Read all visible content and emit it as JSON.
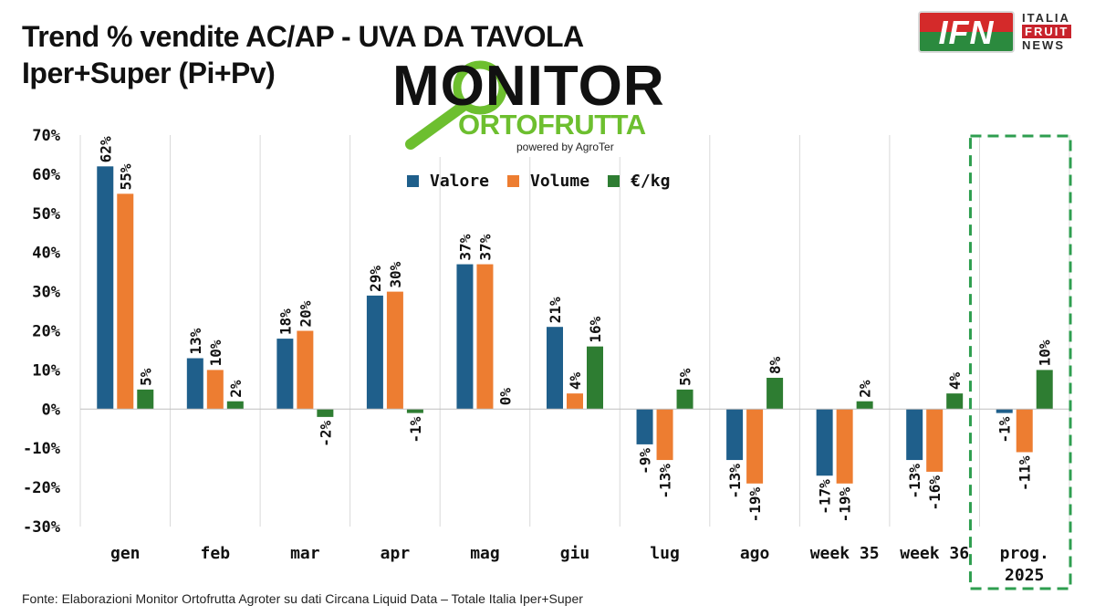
{
  "title": {
    "line1": "Trend % vendite AC/AP - UVA DA TAVOLA",
    "line2": "Iper+Super (Pi+Pv)"
  },
  "logos": {
    "ifn": {
      "mark": "IFN",
      "line1": "ITALIA",
      "line2": "FRUIT",
      "line3": "NEWS"
    },
    "monitor": {
      "line1": "MONITOR",
      "line2": "ORTOFRUTTA",
      "powered": "powered by AgroTer"
    }
  },
  "source": "Fonte: Elaborazioni Monitor Ortofrutta Agroter su dati Circana Liquid Data – Totale Italia Iper+Super",
  "chart_data": {
    "type": "bar",
    "categories": [
      "gen",
      "feb",
      "mar",
      "apr",
      "mag",
      "giu",
      "lug",
      "ago",
      "week 35",
      "week 36",
      "prog. 2025"
    ],
    "series": [
      {
        "name": "Valore",
        "color": "#1f5f8b",
        "values": [
          62,
          13,
          18,
          29,
          37,
          21,
          -9,
          -13,
          -17,
          -13,
          -1
        ]
      },
      {
        "name": "Volume",
        "color": "#ed7d31",
        "values": [
          55,
          10,
          20,
          30,
          37,
          4,
          -13,
          -19,
          -19,
          -16,
          -11
        ]
      },
      {
        "name": "€/kg",
        "color": "#2e7d32",
        "values": [
          5,
          2,
          -2,
          -1,
          0,
          16,
          5,
          8,
          2,
          4,
          10
        ]
      }
    ],
    "ylim": [
      -30,
      70
    ],
    "yticks": [
      "70%",
      "60%",
      "50%",
      "40%",
      "30%",
      "20%",
      "10%",
      "0%",
      "-10%",
      "-20%",
      "-30%"
    ],
    "ytick_values": [
      70,
      60,
      50,
      40,
      30,
      20,
      10,
      0,
      -10,
      -20,
      -30
    ],
    "highlight": {
      "category": "prog. 2025",
      "style": "dashed",
      "color": "#2e9e4f"
    },
    "grid": "vertical",
    "legend": "top-center"
  }
}
